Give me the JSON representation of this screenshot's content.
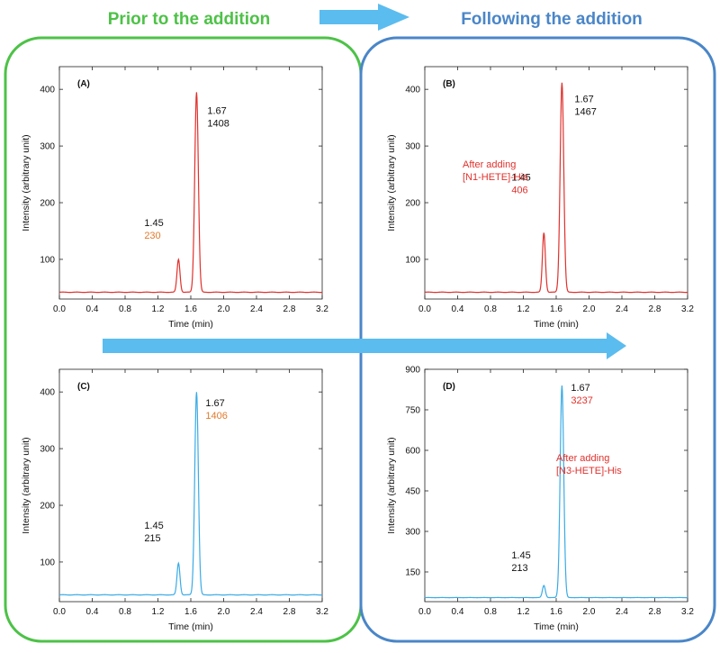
{
  "headers": {
    "left": "Prior to the addition",
    "right": "Following the addition",
    "left_color": "#4dc247",
    "right_color": "#4a86c8"
  },
  "colors": {
    "arrow": "#5bbcef",
    "green_box": "#4dc247",
    "blue_box": "#4a86c8",
    "red_trace": "#e0312c",
    "blue_trace": "#3aabe6",
    "annotation_black": "#111111",
    "annotation_orange": "#e07a2c",
    "annotation_red": "#e0312c"
  },
  "chart_data": [
    {
      "panel": "(A)",
      "type": "line",
      "xlabel": "Time (min)",
      "ylabel": "Intensity (arbitrary unit)",
      "xlim": [
        0.0,
        3.2
      ],
      "ylim": [
        30,
        440
      ],
      "xticks": [
        "0.0",
        "0.4",
        "0.8",
        "1.2",
        "1.6",
        "2.0",
        "2.4",
        "2.8",
        "3.2"
      ],
      "yticks": [
        100,
        200,
        300,
        400
      ],
      "line_color": "#e0312c",
      "baseline": 42,
      "peaks": [
        {
          "time": 1.45,
          "height": 100,
          "label_time": "1.45",
          "label_area": "230",
          "area_color": "#e07a2c"
        },
        {
          "time": 1.67,
          "height": 395,
          "label_time": "1.67",
          "label_area": "1408",
          "area_color": "#111111"
        }
      ],
      "annotation": null
    },
    {
      "panel": "(B)",
      "type": "line",
      "xlabel": "Time (min)",
      "ylabel": "Intensity (arbitrary unit)",
      "xlim": [
        0.0,
        3.2
      ],
      "ylim": [
        30,
        440
      ],
      "xticks": [
        "0.0",
        "0.4",
        "0.8",
        "1.2",
        "1.6",
        "2.0",
        "2.4",
        "2.8",
        "3.2"
      ],
      "yticks": [
        100,
        200,
        300,
        400
      ],
      "line_color": "#e0312c",
      "baseline": 42,
      "peaks": [
        {
          "time": 1.45,
          "height": 147,
          "label_time": "1.45",
          "label_area": "406",
          "area_color": "#e0312c"
        },
        {
          "time": 1.67,
          "height": 412,
          "label_time": "1.67",
          "label_area": "1467",
          "area_color": "#111111"
        }
      ],
      "annotation": {
        "lines": [
          "After adding",
          "[N1-HETE]-His"
        ],
        "color": "#e0312c"
      }
    },
    {
      "panel": "(C)",
      "type": "line",
      "xlabel": "Time (min)",
      "ylabel": "Intensity (arbitrary unit)",
      "xlim": [
        0.0,
        3.2
      ],
      "ylim": [
        30,
        440
      ],
      "xticks": [
        "0.0",
        "0.4",
        "0.8",
        "1.2",
        "1.6",
        "2.0",
        "2.4",
        "2.8",
        "3.2"
      ],
      "yticks": [
        100,
        200,
        300,
        400
      ],
      "line_color": "#3aabe6",
      "baseline": 42,
      "peaks": [
        {
          "time": 1.45,
          "height": 98,
          "label_time": "1.45",
          "label_area": "215",
          "area_color": "#111111"
        },
        {
          "time": 1.67,
          "height": 400,
          "label_time": "1.67",
          "label_area": "1406",
          "area_color": "#e07a2c"
        }
      ],
      "annotation": null
    },
    {
      "panel": "(D)",
      "type": "line",
      "xlabel": "Time (min)",
      "ylabel": "Intensity (arbitrary unit)",
      "xlim": [
        0.0,
        3.2
      ],
      "ylim": [
        40,
        900
      ],
      "xticks": [
        "0.0",
        "0.4",
        "0.8",
        "1.2",
        "1.6",
        "2.0",
        "2.4",
        "2.8",
        "3.2"
      ],
      "yticks": [
        150,
        300,
        450,
        600,
        750,
        900
      ],
      "line_color": "#3aabe6",
      "baseline": 55,
      "peaks": [
        {
          "time": 1.45,
          "height": 100,
          "label_time": "1.45",
          "label_area": "213",
          "area_color": "#111111"
        },
        {
          "time": 1.67,
          "height": 840,
          "label_time": "1.67",
          "label_area": "3237",
          "area_color": "#e0312c"
        }
      ],
      "annotation": {
        "lines": [
          "After adding",
          "[N3-HETE]-His"
        ],
        "color": "#e0312c"
      }
    }
  ]
}
